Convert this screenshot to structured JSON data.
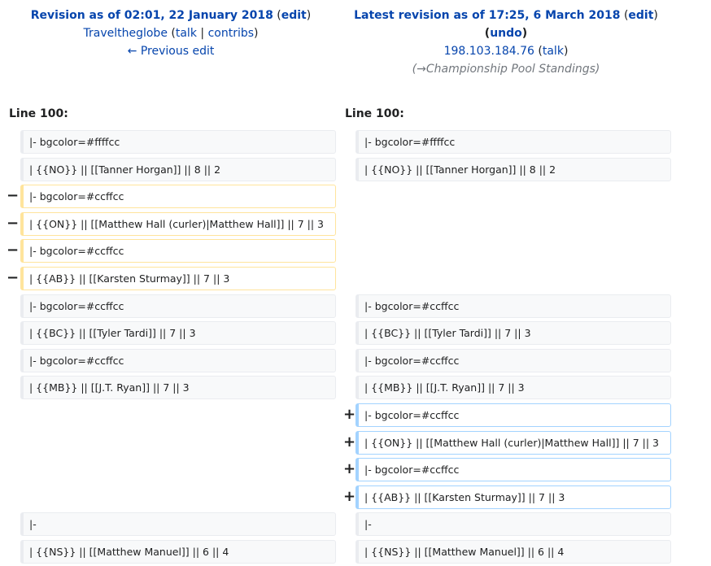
{
  "left_header": {
    "revision_label": "Revision as of 02:01, 22 January 2018",
    "edit_open": "(",
    "edit_label": "edit",
    "edit_close": ")",
    "user": "Traveltheglobe",
    "talk_open": "(",
    "talk_label": "talk",
    "sep": "|",
    "contribs_label": "contribs",
    "talk_close": ")",
    "previous_edit": "← Previous edit"
  },
  "right_header": {
    "revision_label": "Latest revision as of 17:25, 6 March 2018",
    "edit_open": "(",
    "edit_label": "edit",
    "edit_close": ")",
    "undo_open": "(",
    "undo_label": "undo",
    "undo_close": ")",
    "user": "198.103.184.76",
    "talk_open": "(",
    "talk_label": "talk",
    "talk_close": ")",
    "summary_open": "(",
    "summary_arrow": "→",
    "summary_text": "Championship Pool Standings",
    "summary_close": ")"
  },
  "line_numbers": {
    "left": "Line 100:",
    "right": "Line 100:"
  },
  "diff_rows": [
    {
      "type": "context",
      "left": "|- bgcolor=#ffffcc",
      "right": "|- bgcolor=#ffffcc"
    },
    {
      "type": "context",
      "left": "| {{NO}} || [[Tanner Horgan]] || 8 || 2",
      "right": "| {{NO}} || [[Tanner Horgan]] || 8 || 2"
    },
    {
      "type": "deleted",
      "marker": "−",
      "left": "|- bgcolor=#ccffcc"
    },
    {
      "type": "deleted",
      "marker": "−",
      "left": "| {{ON}} || [[Matthew Hall (curler)|Matthew Hall]] || 7 || 3"
    },
    {
      "type": "deleted",
      "marker": "−",
      "left": "|- bgcolor=#ccffcc"
    },
    {
      "type": "deleted",
      "marker": "−",
      "left": "| {{AB}} || [[Karsten Sturmay]] || 7 || 3"
    },
    {
      "type": "context",
      "left": "|- bgcolor=#ccffcc",
      "right": "|- bgcolor=#ccffcc"
    },
    {
      "type": "context",
      "left": "| {{BC}} || [[Tyler Tardi]] || 7 || 3",
      "right": "| {{BC}} || [[Tyler Tardi]] || 7 || 3"
    },
    {
      "type": "context",
      "left": "|- bgcolor=#ccffcc",
      "right": "|- bgcolor=#ccffcc"
    },
    {
      "type": "context",
      "left": "| {{MB}} || [[J.T. Ryan]] || 7 || 3",
      "right": "| {{MB}} || [[J.T. Ryan]] || 7 || 3"
    },
    {
      "type": "added",
      "marker": "+",
      "right": "|- bgcolor=#ccffcc"
    },
    {
      "type": "added",
      "marker": "+",
      "right": "| {{ON}} || [[Matthew Hall (curler)|Matthew Hall]] || 7 || 3"
    },
    {
      "type": "added",
      "marker": "+",
      "right": "|- bgcolor=#ccffcc"
    },
    {
      "type": "added",
      "marker": "+",
      "right": "| {{AB}} || [[Karsten Sturmay]] || 7 || 3"
    },
    {
      "type": "context",
      "left": "|-",
      "right": "|-"
    },
    {
      "type": "context",
      "left": "| {{NS}} || [[Matthew Manuel]] || 6 || 4",
      "right": "| {{NS}} || [[Matthew Manuel]] || 6 || 4"
    }
  ],
  "colors": {
    "deleted_border": "#ffe49c",
    "added_border": "#a3d3ff",
    "context_bg": "#f8f9fa",
    "link": "#0645ad"
  }
}
